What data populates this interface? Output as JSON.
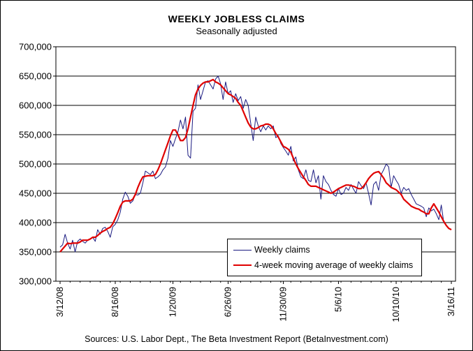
{
  "chart_data": {
    "type": "line",
    "title": "WEEKLY JOBLESS CLAIMS",
    "subtitle": "Seasonally adjusted",
    "source": "Sources:  U.S. Labor Dept., The Beta Investment Report (BetaInvestment.com)",
    "ylim": [
      300000,
      700000
    ],
    "yticks": [
      "300,000",
      "350,000",
      "400,000",
      "450,000",
      "500,000",
      "550,000",
      "600,000",
      "650,000",
      "700,000"
    ],
    "yticks_values": [
      300000,
      350000,
      400000,
      450000,
      500000,
      550000,
      600000,
      650000,
      700000
    ],
    "xticks": [
      "3/12/08",
      "8/16/08",
      "1/20/09",
      "6/26/09",
      "11/30/09",
      "5/6/10",
      "10/10/10",
      "3/16/11"
    ],
    "weeks_total": 157,
    "legend_position": "bottom-right",
    "grid": "horizontal",
    "colors": {
      "weekly": "#1a1a80",
      "average": "#e00000"
    },
    "series": [
      {
        "name": "Weekly claims",
        "values": [
          358000,
          362000,
          380000,
          365000,
          355000,
          370000,
          350000,
          368000,
          372000,
          368000,
          365000,
          370000,
          372000,
          375000,
          368000,
          388000,
          380000,
          390000,
          392000,
          385000,
          375000,
          393000,
          397000,
          405000,
          418000,
          440000,
          452000,
          445000,
          433000,
          437000,
          448000,
          447000,
          450000,
          468000,
          488000,
          485000,
          482000,
          488000,
          475000,
          478000,
          482000,
          490000,
          495000,
          510000,
          540000,
          530000,
          543000,
          555000,
          575000,
          560000,
          580000,
          515000,
          510000,
          590000,
          595000,
          635000,
          610000,
          625000,
          640000,
          642000,
          635000,
          628000,
          645000,
          650000,
          637000,
          610000,
          640000,
          620000,
          625000,
          605000,
          620000,
          608000,
          615000,
          595000,
          610000,
          600000,
          570000,
          540000,
          580000,
          565000,
          555000,
          565000,
          558000,
          565000,
          560000,
          565000,
          545000,
          548000,
          535000,
          528000,
          522000,
          515000,
          530000,
          505000,
          512000,
          490000,
          478000,
          475000,
          490000,
          472000,
          470000,
          490000,
          468000,
          480000,
          440000,
          480000,
          470000,
          465000,
          455000,
          448000,
          445000,
          458000,
          448000,
          450000,
          460000,
          455000,
          465000,
          457000,
          450000,
          470000,
          463000,
          458000,
          468000,
          450000,
          430000,
          465000,
          470000,
          455000,
          482000,
          490000,
          500000,
          495000,
          460000,
          480000,
          472000,
          465000,
          450000,
          460000,
          455000,
          458000,
          448000,
          440000,
          432000,
          430000,
          428000,
          425000,
          410000,
          425000,
          420000,
          423000,
          415000,
          405000,
          430000,
          400000,
          395000,
          390000,
          388000
        ],
        "noisy": true
      },
      {
        "name": "4-week moving average of weekly claims",
        "values": [
          350000,
          355000,
          360000,
          365000,
          364000,
          365000,
          365000,
          365000,
          367000,
          370000,
          370000,
          370000,
          372000,
          375000,
          375000,
          378000,
          382000,
          385000,
          387000,
          390000,
          392000,
          398000,
          407000,
          417000,
          428000,
          435000,
          437000,
          437000,
          437000,
          440000,
          448000,
          460000,
          470000,
          478000,
          479000,
          480000,
          480000,
          480000,
          482000,
          490000,
          500000,
          512000,
          524000,
          536000,
          548000,
          558000,
          558000,
          550000,
          540000,
          540000,
          545000,
          560000,
          580000,
          600000,
          618000,
          628000,
          634000,
          638000,
          640000,
          640000,
          642000,
          644000,
          640000,
          638000,
          635000,
          630000,
          625000,
          620000,
          618000,
          615000,
          612000,
          605000,
          600000,
          590000,
          580000,
          570000,
          563000,
          560000,
          560000,
          562000,
          565000,
          566000,
          568000,
          568000,
          566000,
          560000,
          552000,
          546000,
          538000,
          530000,
          528000,
          525000,
          520000,
          510000,
          500000,
          492000,
          485000,
          478000,
          472000,
          465000,
          462000,
          462000,
          462000,
          460000,
          458000,
          456000,
          454000,
          452000,
          450000,
          452000,
          455000,
          458000,
          460000,
          462000,
          464000,
          464000,
          463000,
          462000,
          460000,
          458000,
          458000,
          462000,
          468000,
          475000,
          480000,
          484000,
          486000,
          487000,
          482000,
          476000,
          468000,
          464000,
          460000,
          458000,
          456000,
          452000,
          448000,
          440000,
          436000,
          432000,
          428000,
          426000,
          424000,
          423000,
          420000,
          418000,
          415000,
          415000,
          425000,
          432000,
          425000,
          418000,
          410000,
          402000,
          395000,
          390000,
          388000
        ]
      }
    ]
  }
}
